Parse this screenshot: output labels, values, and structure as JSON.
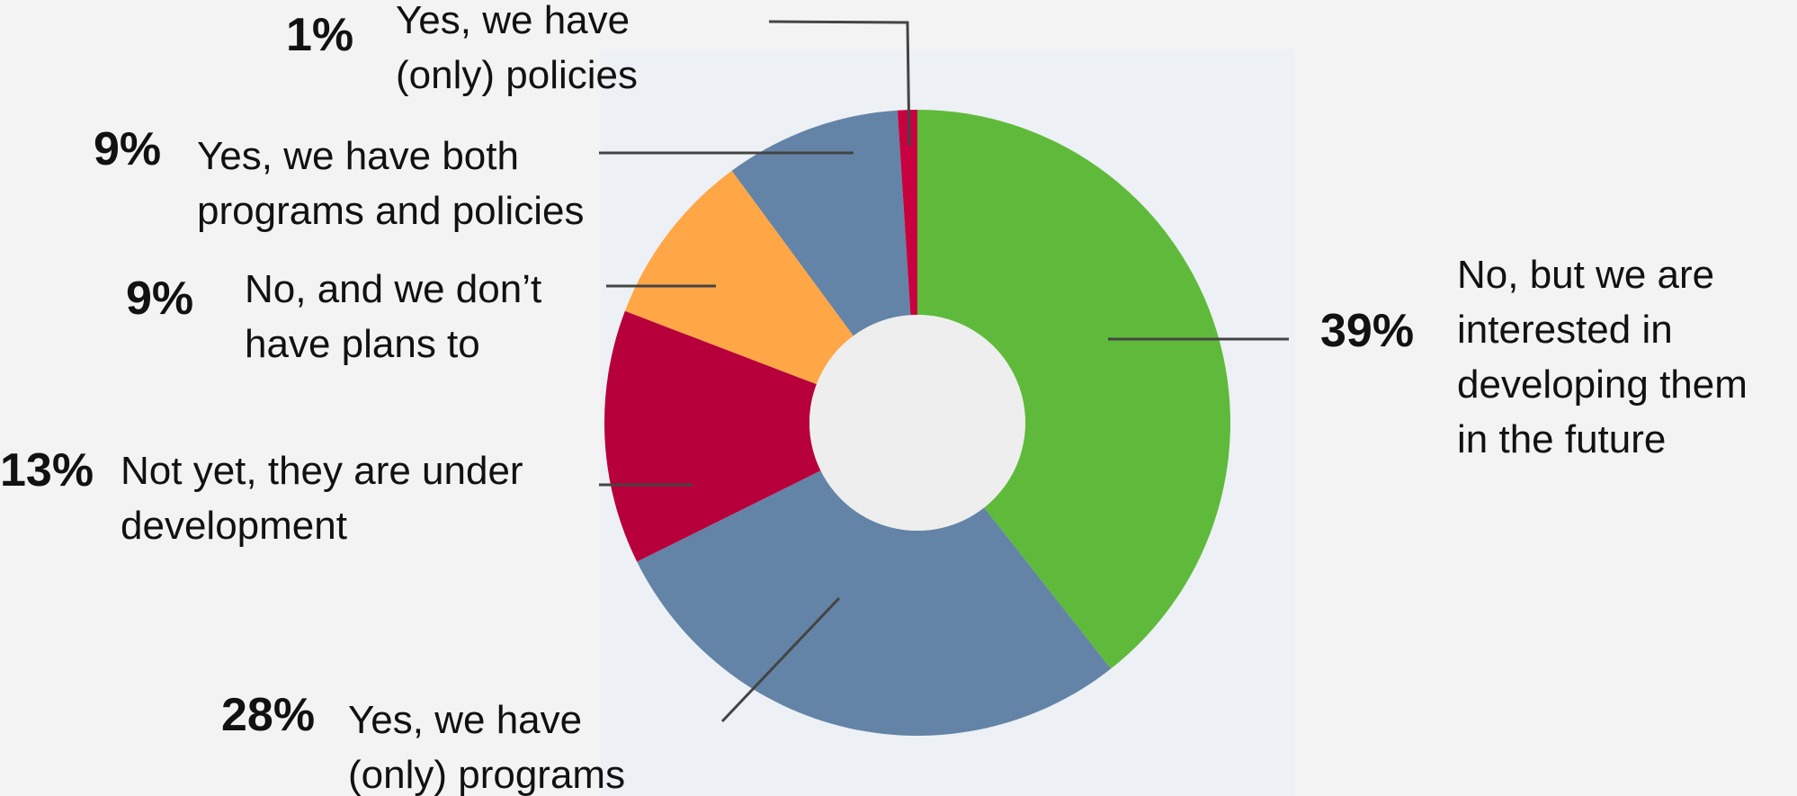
{
  "chart_data": {
    "type": "pie",
    "donut": true,
    "title": "",
    "slices": [
      {
        "label": "No, but we are interested in developing them in the future",
        "label_lines": [
          "No, but we are",
          "interested in",
          "developing them",
          "in the future"
        ],
        "value": 39,
        "value_label": "39%",
        "color": "#5fba3b"
      },
      {
        "label": "Yes, we have (only) programs",
        "label_lines": [
          "Yes, we have",
          "(only) programs"
        ],
        "value": 28,
        "value_label": "28%",
        "color": "#6384a6"
      },
      {
        "label": "Not yet, they are under development",
        "label_lines": [
          "Not yet, they are under",
          "development"
        ],
        "value": 13,
        "value_label": "13%",
        "color": "#b7003b"
      },
      {
        "label": "No, and we don’t have plans to",
        "label_lines": [
          "No, and we don’t",
          "have plans to"
        ],
        "value": 9,
        "value_label": "9%",
        "color": "#ffa646"
      },
      {
        "label": "Yes, we have both programs and policies",
        "label_lines": [
          "Yes, we have both",
          "programs and policies"
        ],
        "value": 9,
        "value_label": "9%",
        "color": "#6384a6"
      },
      {
        "label": "Yes, we have (only) policies",
        "label_lines": [
          "Yes, we have",
          "(only) policies"
        ],
        "value": 1,
        "value_label": "1%",
        "color": "#c8003f"
      }
    ],
    "legend": "none"
  }
}
